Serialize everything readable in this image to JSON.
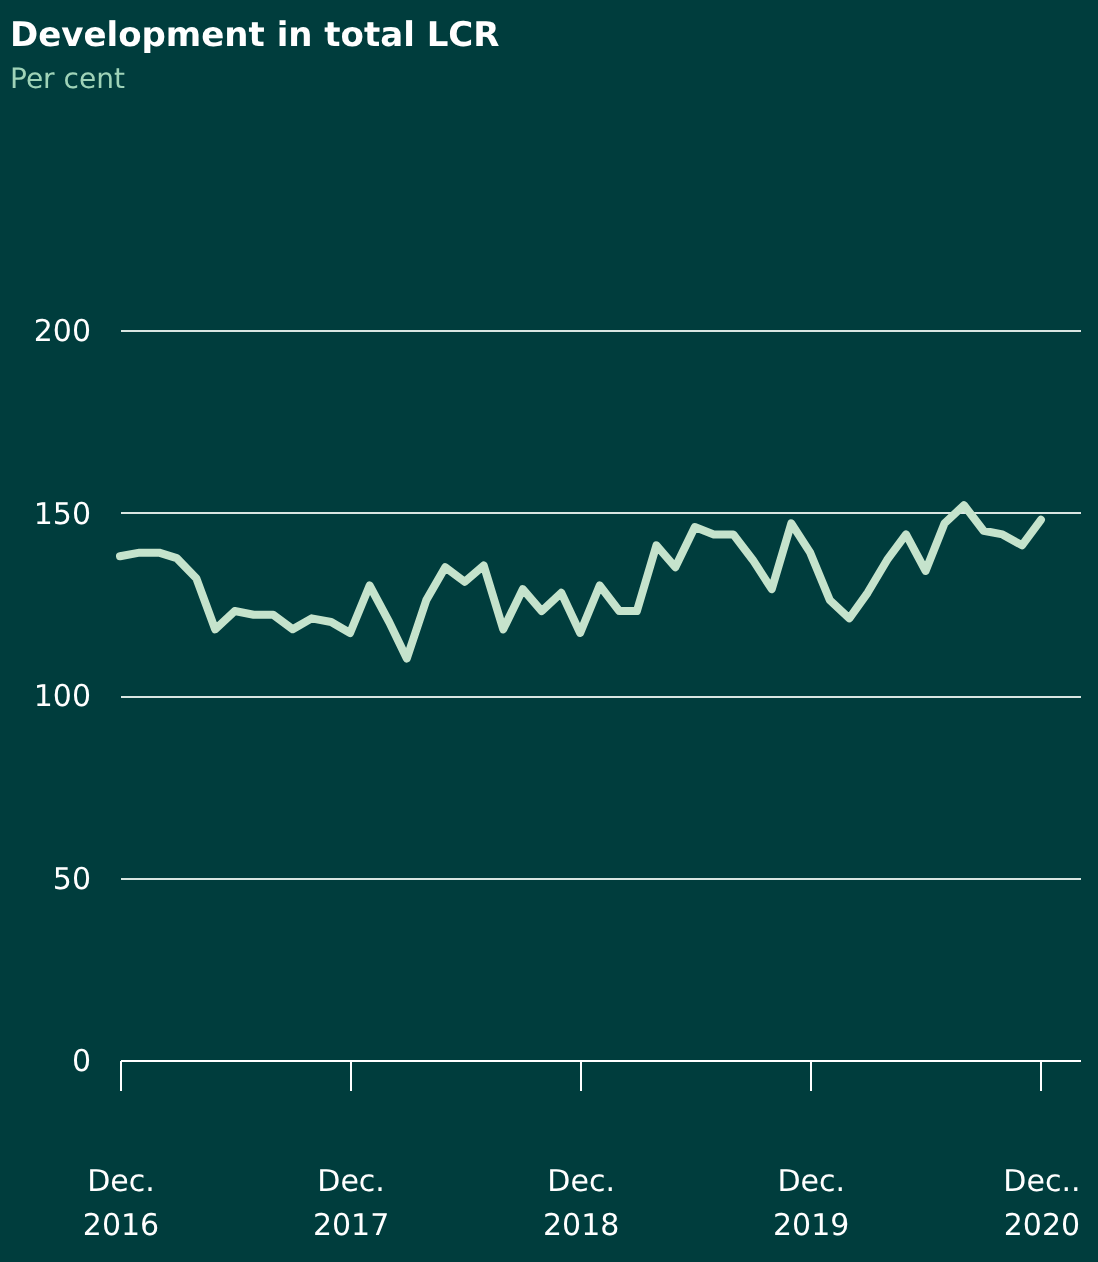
{
  "chart_data": {
    "type": "line",
    "title": "Development in total LCR",
    "subtitle": "Per cent",
    "x": [
      "2016-12",
      "2017-01",
      "2017-02",
      "2017-03",
      "2017-04",
      "2017-05",
      "2017-06",
      "2017-07",
      "2017-08",
      "2017-09",
      "2017-10",
      "2017-11",
      "2017-12",
      "2018-01",
      "2018-02",
      "2018-03",
      "2018-04",
      "2018-05",
      "2018-06",
      "2018-07",
      "2018-08",
      "2018-09",
      "2018-10",
      "2018-11",
      "2018-12",
      "2019-01",
      "2019-02",
      "2019-03",
      "2019-04",
      "2019-05",
      "2019-06",
      "2019-07",
      "2019-08",
      "2019-09",
      "2019-10",
      "2019-11",
      "2019-12",
      "2020-01",
      "2020-02",
      "2020-03",
      "2020-04",
      "2020-05",
      "2020-06",
      "2020-07",
      "2020-08",
      "2020-09",
      "2020-10",
      "2020-11",
      "2020-12"
    ],
    "series": [
      {
        "color": "#c5e3cc",
        "values": [
          138,
          139,
          139,
          137.5,
          132,
          118,
          123,
          122,
          122,
          118,
          121,
          120,
          117,
          130,
          120,
          110,
          126,
          135,
          131,
          135.5,
          118,
          129,
          123,
          128,
          117,
          130,
          123,
          123,
          141,
          135,
          146,
          144,
          144,
          137,
          129,
          147,
          139,
          126,
          121,
          128,
          137,
          144,
          134,
          147,
          152,
          145,
          144,
          141,
          148
        ]
      }
    ],
    "xlim": [
      "2016-12",
      "2021-02"
    ],
    "xticks": [
      {
        "value": "2016-12",
        "label": "Dec. 2016"
      },
      {
        "value": "2017-12",
        "label": "Dec. 2017"
      },
      {
        "value": "2018-12",
        "label": "Dec. 2018"
      },
      {
        "value": "2019-12",
        "label": "Dec. 2019"
      },
      {
        "value": "2020-12",
        "label": "Dec.. 2020"
      }
    ],
    "ylim": [
      0,
      200
    ],
    "yticks": [
      0,
      50,
      100,
      150,
      200
    ],
    "grid": "y",
    "marker": "none",
    "line_style": "solid"
  }
}
